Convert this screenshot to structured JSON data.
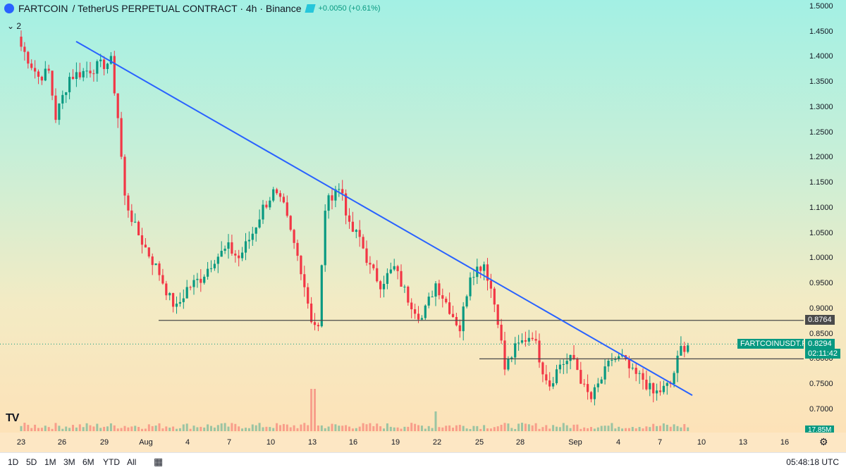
{
  "header": {
    "symbol": "FARTCOIN",
    "pair_text": "/ TetherUS PERPETUAL CONTRACT · 4h · Binance",
    "change": "+0.0050 (+0.61%)",
    "indicator_toggle": "2"
  },
  "colors": {
    "up": "#089981",
    "down": "#f23645",
    "trendline": "#2962ff",
    "hline": "#4a4a4a",
    "ticker_tag": "#089981"
  },
  "price_axis": {
    "ticks": [
      "1.5000",
      "1.4500",
      "1.4000",
      "1.3500",
      "1.3000",
      "1.2500",
      "1.2000",
      "1.1500",
      "1.1000",
      "1.0500",
      "1.0000",
      "0.9500",
      "0.9000",
      "0.8500",
      "0.8000",
      "0.7500",
      "0.7000"
    ],
    "level_tag": "0.8764",
    "ticker_label": "FARTCOINUSDT.P",
    "last_price": "0.8294",
    "countdown": "02:11:42",
    "volume_label": "17.85M"
  },
  "time_axis": {
    "labels": [
      "23",
      "26",
      "29",
      "Aug",
      "4",
      "7",
      "10",
      "13",
      "16",
      "19",
      "22",
      "25",
      "28",
      "Sep",
      "4",
      "7",
      "10",
      "13",
      "16"
    ]
  },
  "bottom_bar": {
    "timeframes": [
      "1D",
      "5D",
      "1M",
      "3M",
      "6M",
      "YTD",
      "All"
    ],
    "clock": "05:48:18 UTC"
  },
  "chart_data": {
    "type": "candlestick",
    "title": "FARTCOIN / TetherUS PERPETUAL CONTRACT · 4h · Binance",
    "interval": "4h",
    "x_range": [
      "Jul 23",
      "Sep 16"
    ],
    "ylim": [
      0.68,
      1.51
    ],
    "price_path": [
      [
        0,
        1.42
      ],
      [
        5,
        1.36
      ],
      [
        8,
        1.37
      ],
      [
        10,
        1.28
      ],
      [
        14,
        1.36
      ],
      [
        18,
        1.37
      ],
      [
        22,
        1.38
      ],
      [
        26,
        1.39
      ],
      [
        28,
        1.28
      ],
      [
        30,
        1.12
      ],
      [
        33,
        1.06
      ],
      [
        36,
        1.02
      ],
      [
        40,
        0.97
      ],
      [
        43,
        0.92
      ],
      [
        45,
        0.9
      ],
      [
        48,
        0.94
      ],
      [
        52,
        0.96
      ],
      [
        56,
        1.0
      ],
      [
        60,
        1.02
      ],
      [
        63,
        1.0
      ],
      [
        67,
        1.05
      ],
      [
        70,
        1.1
      ],
      [
        73,
        1.13
      ],
      [
        76,
        1.1
      ],
      [
        78,
        1.05
      ],
      [
        81,
        0.98
      ],
      [
        84,
        0.88
      ],
      [
        86,
        0.86
      ],
      [
        88,
        1.1
      ],
      [
        91,
        1.14
      ],
      [
        93,
        1.13
      ],
      [
        95,
        1.06
      ],
      [
        98,
        1.04
      ],
      [
        101,
        0.98
      ],
      [
        104,
        0.95
      ],
      [
        108,
        0.98
      ],
      [
        112,
        0.92
      ],
      [
        116,
        0.88
      ],
      [
        120,
        0.95
      ],
      [
        124,
        0.9
      ],
      [
        127,
        0.86
      ],
      [
        130,
        0.97
      ],
      [
        134,
        0.99
      ],
      [
        136,
        0.94
      ],
      [
        138,
        0.88
      ],
      [
        140,
        0.78
      ],
      [
        143,
        0.82
      ],
      [
        146,
        0.84
      ],
      [
        148,
        0.85
      ],
      [
        151,
        0.78
      ],
      [
        153,
        0.75
      ],
      [
        156,
        0.79
      ],
      [
        160,
        0.8
      ],
      [
        163,
        0.74
      ],
      [
        165,
        0.72
      ],
      [
        168,
        0.76
      ],
      [
        171,
        0.8
      ],
      [
        174,
        0.8
      ],
      [
        177,
        0.77
      ],
      [
        180,
        0.76
      ],
      [
        183,
        0.73
      ],
      [
        186,
        0.74
      ],
      [
        188,
        0.75
      ],
      [
        191,
        0.82
      ],
      [
        193,
        0.83
      ]
    ],
    "horizontal_levels": [
      0.8764,
      0.8
    ],
    "trendline": {
      "start": [
        "Jul 27",
        1.4303
      ],
      "end": [
        "Sep 8",
        0.7276
      ]
    },
    "volume": {
      "max_label": "17.85M"
    },
    "last_price": 0.8294
  }
}
